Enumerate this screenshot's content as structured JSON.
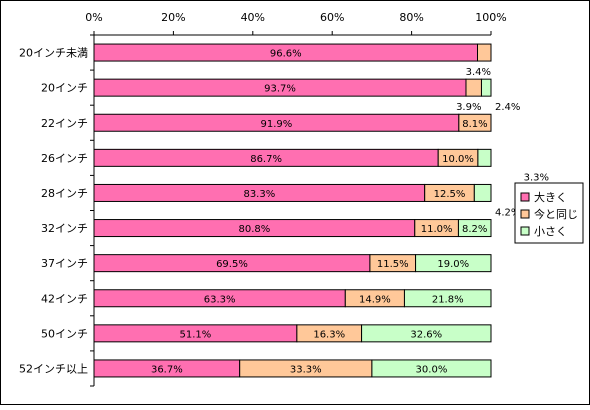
{
  "chart_data": {
    "type": "bar",
    "stacked": true,
    "orientation": "horizontal",
    "value_format": "percent",
    "xlim": [
      0,
      100
    ],
    "x_ticks": [
      "0%",
      "20%",
      "40%",
      "60%",
      "80%",
      "100%"
    ],
    "grid": false,
    "legend_position": "right",
    "categories": [
      "20インチ未満",
      "20インチ",
      "22インチ",
      "26インチ",
      "28インチ",
      "32インチ",
      "37インチ",
      "42インチ",
      "50インチ",
      "52インチ以上"
    ],
    "series": [
      {
        "name": "大きく",
        "color": "#ff6fb1",
        "values": [
          96.6,
          93.7,
          91.9,
          86.7,
          83.3,
          80.8,
          69.5,
          63.3,
          51.1,
          36.7
        ],
        "labels": [
          "96.6%",
          "93.7%",
          "91.9%",
          "86.7%",
          "83.3%",
          "80.8%",
          "69.5%",
          "63.3%",
          "51.1%",
          "36.7%"
        ]
      },
      {
        "name": "今と同じ",
        "color": "#ffc899",
        "values": [
          3.4,
          3.9,
          8.1,
          10.0,
          12.5,
          11.0,
          11.5,
          14.9,
          16.3,
          33.3
        ],
        "labels": [
          "3.4%",
          "3.9%",
          "8.1%",
          "10.0%",
          "12.5%",
          "11.0%",
          "11.5%",
          "14.9%",
          "16.3%",
          "33.3%"
        ]
      },
      {
        "name": "小さく",
        "color": "#c8ffc8",
        "values": [
          0,
          2.4,
          0,
          3.3,
          4.2,
          8.2,
          19.0,
          21.8,
          32.6,
          30.0
        ],
        "labels": [
          "",
          "2.4%",
          "",
          "3.3%",
          "4.2%",
          "8.2%",
          "19.0%",
          "21.8%",
          "32.6%",
          "30.0%"
        ]
      }
    ]
  }
}
